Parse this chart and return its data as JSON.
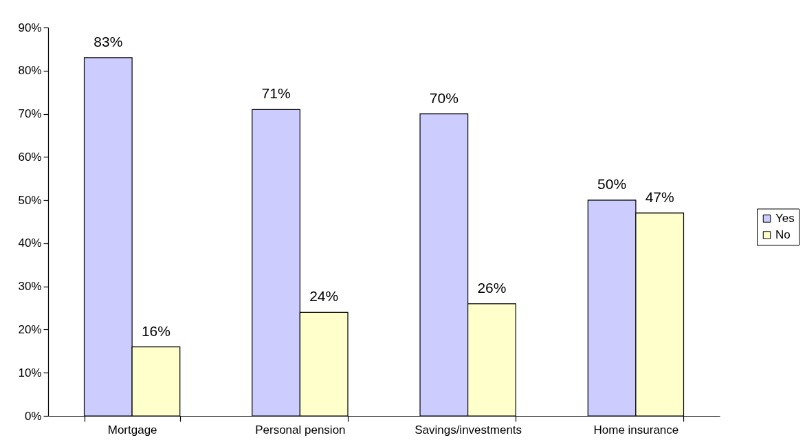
{
  "chart_data": {
    "type": "bar",
    "categories": [
      "Mortgage",
      "Personal pension",
      "Savings/investments",
      "Home insurance"
    ],
    "series": [
      {
        "name": "Yes",
        "color": "#ccccff",
        "values": [
          83,
          71,
          70,
          50
        ],
        "value_labels": [
          "83%",
          "71%",
          "70%",
          "50%"
        ]
      },
      {
        "name": "No",
        "color": "#ffffcc",
        "values": [
          16,
          24,
          26,
          47
        ],
        "value_labels": [
          "16%",
          "24%",
          "26%",
          "47%"
        ]
      }
    ],
    "ylim": [
      0,
      90
    ],
    "yticks": [
      {
        "value": 0,
        "label": "0%"
      },
      {
        "value": 10,
        "label": "10%"
      },
      {
        "value": 20,
        "label": "20%"
      },
      {
        "value": 30,
        "label": "30%"
      },
      {
        "value": 40,
        "label": "40%"
      },
      {
        "value": 50,
        "label": "50%"
      },
      {
        "value": 60,
        "label": "60%"
      },
      {
        "value": 70,
        "label": "70%"
      },
      {
        "value": 80,
        "label": "80%"
      },
      {
        "value": 90,
        "label": "90%"
      }
    ],
    "grid": false,
    "legend": "right"
  }
}
